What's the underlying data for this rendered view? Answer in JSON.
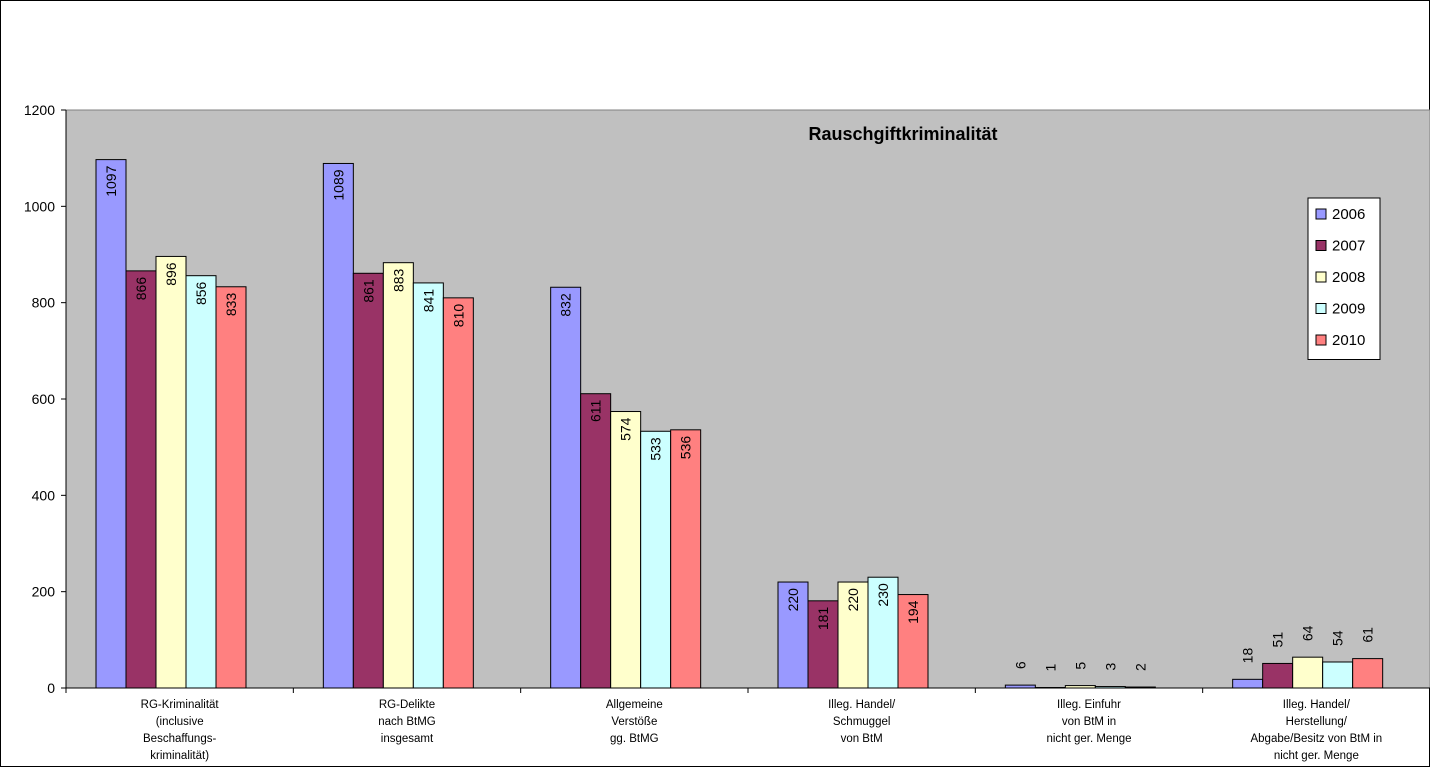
{
  "chart_data": {
    "type": "bar",
    "title": "Rauschgiftkriminalität",
    "xlabel": "",
    "ylabel": "",
    "ylim": [
      0,
      1200
    ],
    "yticks": [
      0,
      200,
      400,
      600,
      800,
      1000,
      1200
    ],
    "grid": false,
    "legend_position": "right",
    "categories": [
      [
        "RG-Kriminalität",
        "(inclusive",
        "Beschaffungs-",
        "kriminalität)"
      ],
      [
        "RG-Delikte",
        "nach BtMG",
        "insgesamt"
      ],
      [
        "Allgemeine",
        "Verstöße",
        "gg. BtMG"
      ],
      [
        "Illeg. Handel/",
        "Schmuggel",
        "von BtM"
      ],
      [
        "Illeg. Einfuhr",
        "von BtM in",
        "nicht ger. Menge"
      ],
      [
        "Illeg. Handel/",
        "Herstellung/",
        "Abgabe/Besitz von BtM in",
        "nicht ger. Menge"
      ]
    ],
    "series": [
      {
        "name": "2006",
        "color": "#9999FF",
        "values": [
          1097,
          1089,
          832,
          220,
          6,
          18
        ]
      },
      {
        "name": "2007",
        "color": "#993366",
        "values": [
          866,
          861,
          611,
          181,
          1,
          51
        ]
      },
      {
        "name": "2008",
        "color": "#FFFFCC",
        "values": [
          896,
          883,
          574,
          220,
          5,
          64
        ]
      },
      {
        "name": "2009",
        "color": "#CCFFFF",
        "values": [
          856,
          841,
          533,
          230,
          3,
          54
        ]
      },
      {
        "name": "2010",
        "color": "#FF8080",
        "values": [
          833,
          810,
          536,
          194,
          2,
          61
        ]
      }
    ],
    "plot_background": "#C0C0C0"
  }
}
